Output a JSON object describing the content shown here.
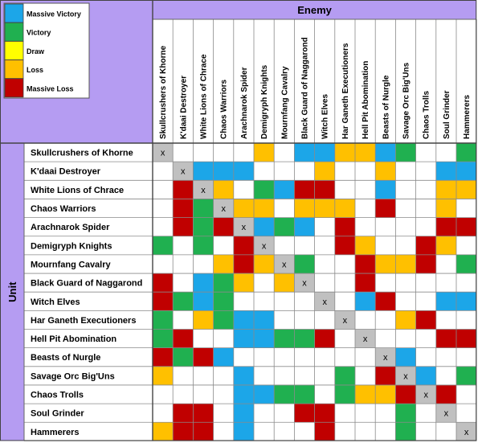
{
  "chart_data": {
    "type": "heatmap",
    "legend": [
      {
        "code": "MV",
        "label": "Massive Victory",
        "color": "#1ca6e8"
      },
      {
        "code": "V",
        "label": "Victory",
        "color": "#20b050"
      },
      {
        "code": "D",
        "label": "Draw",
        "color": "#ffff00"
      },
      {
        "code": "L",
        "label": "Loss",
        "color": "#ffc000"
      },
      {
        "code": "ML",
        "label": "Massive Loss",
        "color": "#c00000"
      }
    ],
    "col_axis_title": "Enemy",
    "row_axis_title": "Unit",
    "columns": [
      "Skullcrushers of Khorne",
      "K'daai Destroyer",
      "White Lions of Chrace",
      "Chaos Warriors",
      "Arachnarok Spider",
      "Demigryph Knights",
      "Mournfang Cavalry",
      "Black Guard of Naggarond",
      "Witch Elves",
      "Har Ganeth Executioners",
      "Hell Pit Abomination",
      "Beasts of Nurgle",
      "Savage Orc Big'Uns",
      "Chaos Trolls",
      "Soul Grinder",
      "Hammerers"
    ],
    "rows": [
      "Skullcrushers of Khorne",
      "K'daai Destroyer",
      "White Lions of Chrace",
      "Chaos Warriors",
      "Arachnarok Spider",
      "Demigryph Knights",
      "Mournfang Cavalry",
      "Black Guard of Naggarond",
      "Witch Elves",
      "Har Ganeth Executioners",
      "Hell Pit Abomination",
      "Beasts of Nurgle",
      "Savage Orc Big'Uns",
      "Chaos Trolls",
      "Soul Grinder",
      "Hammerers"
    ],
    "self_marker": "x",
    "cells": [
      [
        "X",
        "",
        "",
        "",
        "",
        "L",
        "",
        "MV",
        "MV",
        "L",
        "L",
        "MV",
        "V",
        "",
        "",
        "V"
      ],
      [
        "",
        "X",
        "MV",
        "MV",
        "MV",
        "",
        "",
        "",
        "L",
        "",
        "",
        "L",
        "",
        "",
        "MV",
        "MV"
      ],
      [
        "",
        "ML",
        "X",
        "L",
        "",
        "V",
        "MV",
        "ML",
        "ML",
        "",
        "",
        "MV",
        "",
        "",
        "L",
        "L"
      ],
      [
        "",
        "ML",
        "V",
        "X",
        "L",
        "L",
        "",
        "L",
        "L",
        "L",
        "",
        "ML",
        "",
        "",
        "L",
        ""
      ],
      [
        "",
        "ML",
        "V",
        "ML",
        "X",
        "MV",
        "V",
        "MV",
        "",
        "ML",
        "",
        "",
        "",
        "",
        "ML",
        "ML"
      ],
      [
        "V",
        "",
        "V",
        "",
        "ML",
        "X",
        "",
        "",
        "",
        "ML",
        "L",
        "",
        "",
        "ML",
        "L",
        ""
      ],
      [
        "",
        "",
        "",
        "L",
        "ML",
        "L",
        "X",
        "V",
        "",
        "",
        "ML",
        "L",
        "L",
        "ML",
        "",
        "V"
      ],
      [
        "ML",
        "",
        "MV",
        "V",
        "L",
        "",
        "L",
        "X",
        "",
        "",
        "ML",
        "",
        "",
        "",
        "",
        ""
      ],
      [
        "ML",
        "V",
        "MV",
        "V",
        "",
        "",
        "",
        "",
        "X",
        "",
        "MV",
        "ML",
        "",
        "",
        "MV",
        "MV"
      ],
      [
        "V",
        "",
        "L",
        "V",
        "MV",
        "MV",
        "",
        "",
        "",
        "X",
        "",
        "",
        "L",
        "ML",
        "",
        ""
      ],
      [
        "V",
        "ML",
        "",
        "",
        "MV",
        "MV",
        "V",
        "V",
        "ML",
        "",
        "X",
        "",
        "",
        "",
        "ML",
        "ML"
      ],
      [
        "ML",
        "V",
        "ML",
        "MV",
        "",
        "",
        "",
        "",
        "",
        "",
        "",
        "X",
        "MV",
        "",
        "",
        ""
      ],
      [
        "L",
        "",
        "",
        "",
        "MV",
        "",
        "",
        "",
        "",
        "V",
        "",
        "ML",
        "X",
        "MV",
        "",
        "V"
      ],
      [
        "",
        "",
        "",
        "",
        "MV",
        "MV",
        "V",
        "V",
        "",
        "V",
        "L",
        "L",
        "ML",
        "X",
        "ML",
        ""
      ],
      [
        "",
        "ML",
        "ML",
        "",
        "MV",
        "",
        "",
        "ML",
        "ML",
        "",
        "",
        "",
        "V",
        "",
        "X",
        ""
      ],
      [
        "L",
        "ML",
        "ML",
        "",
        "MV",
        "",
        "",
        "",
        "ML",
        "",
        "",
        "",
        "V",
        "",
        "",
        "X"
      ]
    ]
  }
}
